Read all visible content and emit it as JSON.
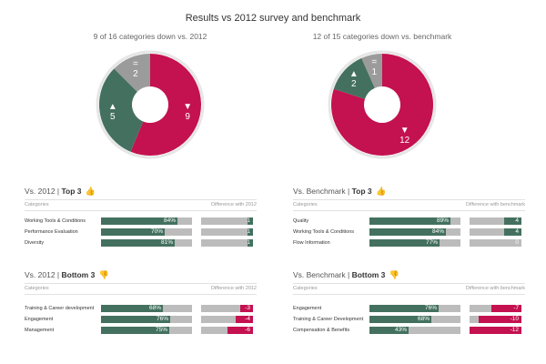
{
  "title": "Results vs 2012 survey and benchmark",
  "colors": {
    "down": "#c4114f",
    "up": "#44715f",
    "equal": "#9b9b9b",
    "bar_bg": "#bcbcbc"
  },
  "chart_data": [
    {
      "type": "pie",
      "title": "9 of 16 categories down vs. 2012",
      "slices": [
        {
          "name": "down",
          "value": 9,
          "label": "9",
          "arrow": "▼",
          "color": "#c4114f"
        },
        {
          "name": "up",
          "value": 5,
          "label": "5",
          "arrow": "▲",
          "color": "#44715f"
        },
        {
          "name": "equal",
          "value": 2,
          "label": "2",
          "arrow": "=",
          "color": "#9b9b9b"
        }
      ]
    },
    {
      "type": "pie",
      "title": "12 of 15 categories down vs. benchmark",
      "slices": [
        {
          "name": "down",
          "value": 12,
          "label": "12",
          "arrow": "▼",
          "color": "#c4114f"
        },
        {
          "name": "up",
          "value": 2,
          "label": "2",
          "arrow": "▲",
          "color": "#44715f"
        },
        {
          "name": "equal",
          "value": 1,
          "label": "1",
          "arrow": "=",
          "color": "#9b9b9b"
        }
      ]
    }
  ],
  "sections": {
    "top2012": {
      "title_prefix": "Vs. 2012 | ",
      "title_bold": "Top 3",
      "icon": "thumbs-up-icon",
      "col_categories": "Categories",
      "col_diff": "Difference with 2012",
      "rows": [
        {
          "label": "Working Tools & Conditions",
          "score": 84,
          "score_text": "84%",
          "diff": 1,
          "diff_text": "1"
        },
        {
          "label": "Performance Evaluation",
          "score": 70,
          "score_text": "70%",
          "diff": 1,
          "diff_text": "1"
        },
        {
          "label": "Diversity",
          "score": 81,
          "score_text": "81%",
          "diff": 1,
          "diff_text": "1"
        }
      ]
    },
    "topBench": {
      "title_prefix": "Vs. Benchmark | ",
      "title_bold": "Top 3",
      "icon": "thumbs-up-icon",
      "col_categories": "Categories",
      "col_diff": "Difference with benchmark",
      "rows": [
        {
          "label": "Quality",
          "score": 89,
          "score_text": "89%",
          "diff": 4,
          "diff_text": "4"
        },
        {
          "label": "Working Tools & Conditions",
          "score": 84,
          "score_text": "84%",
          "diff": 4,
          "diff_text": "4"
        },
        {
          "label": "Flow Information",
          "score": 77,
          "score_text": "77%",
          "diff": 0,
          "diff_text": "0"
        }
      ]
    },
    "bottom2012": {
      "title_prefix": "Vs. 2012 | ",
      "title_bold": "Bottom 3",
      "icon": "thumbs-down-icon",
      "col_categories": "Categories",
      "col_diff": "Difference with 2012",
      "rows": [
        {
          "label": "Training & Career development",
          "score": 68,
          "score_text": "68%",
          "diff": -3,
          "diff_text": "-3"
        },
        {
          "label": "Engagement",
          "score": 76,
          "score_text": "76%",
          "diff": -4,
          "diff_text": "-4"
        },
        {
          "label": "Management",
          "score": 75,
          "score_text": "75%",
          "diff": -6,
          "diff_text": "-6"
        }
      ]
    },
    "bottomBench": {
      "title_prefix": "Vs. Benchmark | ",
      "title_bold": "Bottom 3",
      "icon": "thumbs-down-icon",
      "col_categories": "Categories",
      "col_diff": "Difference with benchmark",
      "rows": [
        {
          "label": "Engagement",
          "score": 76,
          "score_text": "76%",
          "diff": -7,
          "diff_text": "-7"
        },
        {
          "label": "Training & Career Development",
          "score": 68,
          "score_text": "68%",
          "diff": -10,
          "diff_text": "-10"
        },
        {
          "label": "Compensation & Benefits",
          "score": 43,
          "score_text": "43%",
          "diff": -12,
          "diff_text": "-12"
        }
      ]
    }
  }
}
